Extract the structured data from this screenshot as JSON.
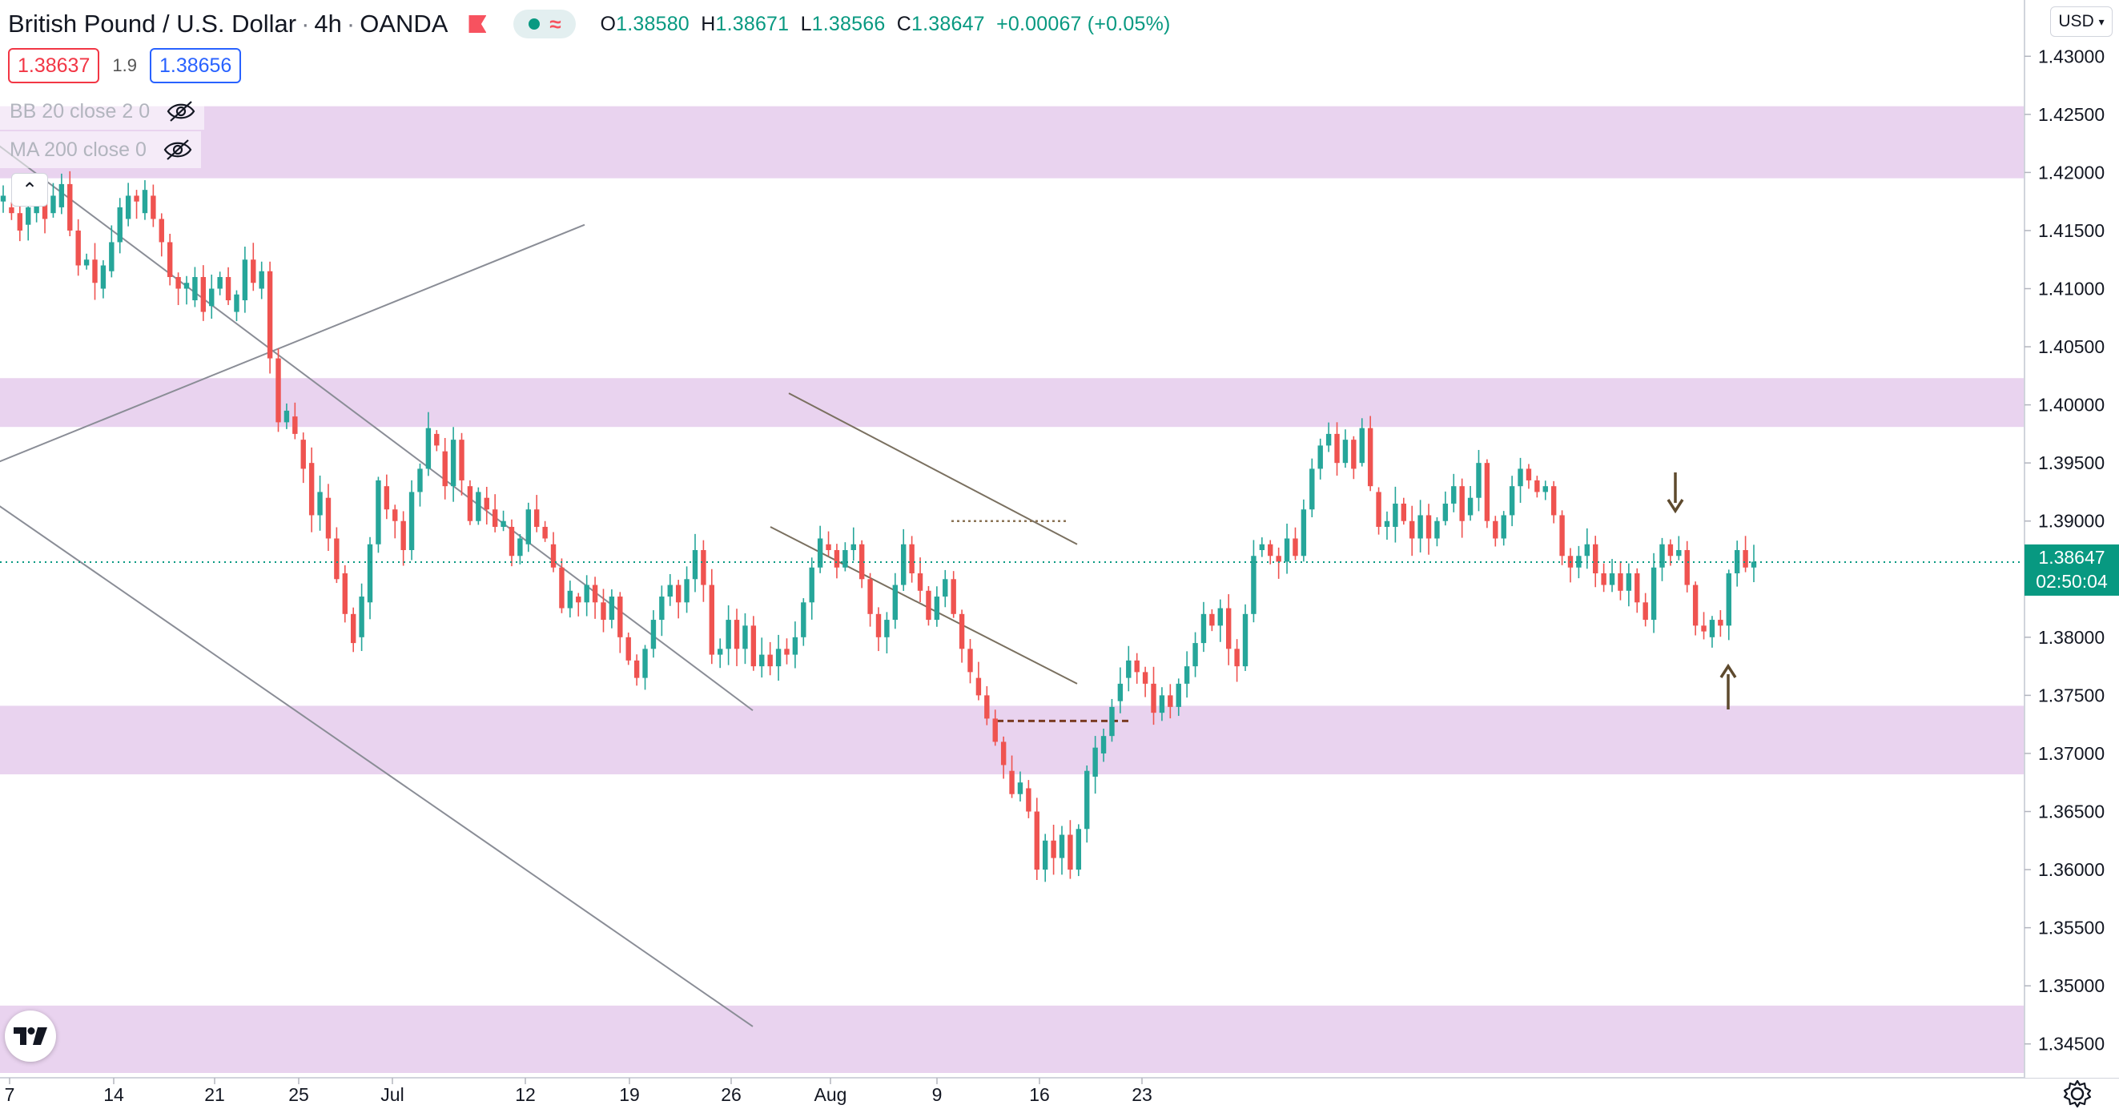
{
  "header": {
    "symbol": "British Pound / U.S. Dollar",
    "interval": "4h",
    "broker": "OANDA",
    "ohlc": {
      "o_label": "O",
      "o": "1.38580",
      "h_label": "H",
      "h": "1.38671",
      "l_label": "L",
      "l": "1.38566",
      "c_label": "C",
      "c": "1.38647",
      "change": "+0.00067 (+0.05%)"
    },
    "market_status_icon": "market-open-dot-icon",
    "flag_icon": "red-flag-icon"
  },
  "trade": {
    "sell": "1.38637",
    "spread": "1.9",
    "buy": "1.38656"
  },
  "indicators": [
    {
      "label": "BB 20 close 2 0",
      "icon": "eye-hidden-icon"
    },
    {
      "label": "MA 200 close 0",
      "icon": "eye-hidden-icon"
    }
  ],
  "currency_selector": "USD",
  "current_price": {
    "value": "1.38647",
    "countdown": "02:50:04"
  },
  "colors": {
    "up": "#26a69a",
    "down": "#ef5350",
    "zone": "#e1c4ea",
    "trendline": "#8a8d96",
    "arrow": "#5e4a2e"
  },
  "chart_data": {
    "type": "candlestick",
    "title": "",
    "xlabel": "",
    "ylabel": "",
    "ylim": [
      1.3425,
      1.4325
    ],
    "y_ticks": [
      "1.43000",
      "1.42500",
      "1.42000",
      "1.41500",
      "1.41000",
      "1.40500",
      "1.40000",
      "1.39500",
      "1.39000",
      "1.38500",
      "1.38000",
      "1.37500",
      "1.37000",
      "1.36500",
      "1.36000",
      "1.35500",
      "1.35000",
      "1.34500"
    ],
    "x_ticks": [
      "7",
      "14",
      "21",
      "25",
      "Jul",
      "12",
      "19",
      "26",
      "Aug",
      "9",
      "16",
      "23"
    ],
    "grid": false,
    "zones": [
      {
        "low": 1.4195,
        "high": 1.4257
      },
      {
        "low": 1.3981,
        "high": 1.4023
      },
      {
        "low": 1.3682,
        "high": 1.3741
      },
      {
        "low": 1.3425,
        "high": 1.3483
      }
    ],
    "trendlines": [
      {
        "from": [
          "Jun 5",
          1.4225
        ],
        "to": [
          "Jul 24",
          1.3737
        ]
      },
      {
        "from": [
          "Jun 5",
          1.395
        ],
        "to": [
          "Jul 9",
          1.4155
        ]
      },
      {
        "from": [
          "Jun 5",
          1.3915
        ],
        "to": [
          "Jul 24",
          1.3465
        ]
      },
      {
        "from": [
          "Jul 28",
          1.401
        ],
        "to": [
          "Aug 18",
          1.388
        ]
      },
      {
        "from": [
          "Jul 27",
          1.3895
        ],
        "to": [
          "Aug 18",
          1.376
        ]
      }
    ],
    "levels": [
      {
        "value": 1.39,
        "from": "Aug 10",
        "to": "Aug 16",
        "style": "dotted"
      },
      {
        "value": 1.3728,
        "from": "Aug 13",
        "to": "Aug 19",
        "style": "dashed"
      }
    ],
    "markers": [
      {
        "type": "arrow-down",
        "at": "Aug 13",
        "value": 1.3935
      },
      {
        "type": "arrow-up",
        "at": "Aug 13",
        "value": 1.3755
      }
    ],
    "series": [
      {
        "points": [
          [
            1.4175,
            1.418
          ],
          [
            1.417,
            1.4165
          ],
          [
            1.4165,
            1.415
          ],
          [
            1.4155,
            1.417
          ],
          [
            1.4165,
            1.418
          ],
          [
            1.418,
            1.416
          ],
          [
            1.4165,
            1.418
          ],
          [
            1.417,
            1.419
          ],
          [
            1.419,
            1.415
          ],
          [
            1.415,
            1.412
          ],
          [
            1.412,
            1.4125
          ],
          [
            1.4125,
            1.4105
          ],
          [
            1.41,
            1.412
          ],
          [
            1.4115,
            1.414
          ],
          [
            1.414,
            1.417
          ],
          [
            1.416,
            1.418
          ],
          [
            1.418,
            1.4175
          ],
          [
            1.4165,
            1.4185
          ],
          [
            1.418,
            1.416
          ],
          [
            1.416,
            1.414
          ],
          [
            1.414,
            1.411
          ],
          [
            1.411,
            1.41
          ],
          [
            1.41,
            1.4105
          ],
          [
            1.409,
            1.411
          ],
          [
            1.411,
            1.408
          ],
          [
            1.4085,
            1.41
          ],
          [
            1.41,
            1.411
          ],
          [
            1.411,
            1.409
          ],
          [
            1.408,
            1.4095
          ],
          [
            1.409,
            1.4125
          ],
          [
            1.4125,
            1.4105
          ],
          [
            1.41,
            1.4115
          ],
          [
            1.4115,
            1.404
          ],
          [
            1.404,
            1.3985
          ],
          [
            1.3985,
            1.3995
          ],
          [
            1.399,
            1.3975
          ],
          [
            1.397,
            1.3945
          ],
          [
            1.395,
            1.3905
          ],
          [
            1.3905,
            1.3925
          ],
          [
            1.392,
            1.3885
          ],
          [
            1.3885,
            1.385
          ],
          [
            1.3855,
            1.382
          ],
          [
            1.382,
            1.3795
          ],
          [
            1.38,
            1.3835
          ],
          [
            1.383,
            1.388
          ],
          [
            1.388,
            1.3935
          ],
          [
            1.393,
            1.391
          ],
          [
            1.391,
            1.39
          ],
          [
            1.39,
            1.3875
          ],
          [
            1.3875,
            1.3925
          ],
          [
            1.3925,
            1.3945
          ],
          [
            1.3945,
            1.398
          ],
          [
            1.3975,
            1.3965
          ],
          [
            1.396,
            1.393
          ],
          [
            1.393,
            1.397
          ],
          [
            1.397,
            1.3935
          ],
          [
            1.393,
            1.39
          ],
          [
            1.39,
            1.3925
          ],
          [
            1.392,
            1.391
          ],
          [
            1.391,
            1.3895
          ],
          [
            1.3895,
            1.39
          ],
          [
            1.3895,
            1.387
          ],
          [
            1.387,
            1.3885
          ],
          [
            1.388,
            1.391
          ],
          [
            1.391,
            1.3895
          ],
          [
            1.3895,
            1.3885
          ],
          [
            1.388,
            1.386
          ],
          [
            1.386,
            1.3825
          ],
          [
            1.3825,
            1.384
          ],
          [
            1.3835,
            1.383
          ],
          [
            1.383,
            1.3845
          ],
          [
            1.3845,
            1.383
          ],
          [
            1.383,
            1.3815
          ],
          [
            1.3815,
            1.3835
          ],
          [
            1.3835,
            1.38
          ],
          [
            1.38,
            1.378
          ],
          [
            1.378,
            1.3765
          ],
          [
            1.3765,
            1.379
          ],
          [
            1.379,
            1.3815
          ],
          [
            1.3815,
            1.3835
          ],
          [
            1.3835,
            1.3845
          ],
          [
            1.3845,
            1.383
          ],
          [
            1.383,
            1.385
          ],
          [
            1.385,
            1.3875
          ],
          [
            1.3875,
            1.3845
          ],
          [
            1.3845,
            1.3785
          ],
          [
            1.3785,
            1.379
          ],
          [
            1.379,
            1.3815
          ],
          [
            1.3815,
            1.379
          ],
          [
            1.379,
            1.381
          ],
          [
            1.381,
            1.3775
          ],
          [
            1.3775,
            1.3785
          ],
          [
            1.3785,
            1.3775
          ],
          [
            1.3775,
            1.379
          ],
          [
            1.379,
            1.3785
          ],
          [
            1.3785,
            1.38
          ],
          [
            1.38,
            1.383
          ],
          [
            1.383,
            1.386
          ],
          [
            1.386,
            1.3885
          ],
          [
            1.388,
            1.3875
          ],
          [
            1.3875,
            1.386
          ],
          [
            1.386,
            1.3875
          ],
          [
            1.3875,
            1.388
          ],
          [
            1.388,
            1.385
          ],
          [
            1.385,
            1.382
          ],
          [
            1.382,
            1.38
          ],
          [
            1.38,
            1.3815
          ],
          [
            1.3815,
            1.3845
          ],
          [
            1.3845,
            1.388
          ],
          [
            1.388,
            1.3855
          ],
          [
            1.3855,
            1.384
          ],
          [
            1.384,
            1.3815
          ],
          [
            1.3815,
            1.3835
          ],
          [
            1.3835,
            1.385
          ],
          [
            1.385,
            1.382
          ],
          [
            1.382,
            1.379
          ],
          [
            1.379,
            1.377
          ],
          [
            1.3765,
            1.375
          ],
          [
            1.375,
            1.373
          ],
          [
            1.373,
            1.371
          ],
          [
            1.371,
            1.369
          ],
          [
            1.3685,
            1.3665
          ],
          [
            1.3665,
            1.3675
          ],
          [
            1.367,
            1.365
          ],
          [
            1.365,
            1.36
          ],
          [
            1.36,
            1.3625
          ],
          [
            1.3625,
            1.361
          ],
          [
            1.361,
            1.363
          ],
          [
            1.363,
            1.36
          ],
          [
            1.36,
            1.3635
          ],
          [
            1.3635,
            1.3685
          ],
          [
            1.368,
            1.3705
          ],
          [
            1.37,
            1.3715
          ],
          [
            1.3715,
            1.374
          ],
          [
            1.3745,
            1.376
          ],
          [
            1.3765,
            1.378
          ],
          [
            1.378,
            1.377
          ],
          [
            1.377,
            1.376
          ],
          [
            1.376,
            1.3735
          ],
          [
            1.3735,
            1.375
          ],
          [
            1.375,
            1.374
          ],
          [
            1.374,
            1.376
          ],
          [
            1.376,
            1.3775
          ],
          [
            1.3775,
            1.3795
          ],
          [
            1.3795,
            1.382
          ],
          [
            1.382,
            1.381
          ],
          [
            1.381,
            1.3825
          ],
          [
            1.3825,
            1.379
          ],
          [
            1.379,
            1.3775
          ],
          [
            1.3775,
            1.382
          ],
          [
            1.382,
            1.387
          ],
          [
            1.3875,
            1.388
          ],
          [
            1.388,
            1.387
          ],
          [
            1.387,
            1.3865
          ],
          [
            1.3865,
            1.3885
          ],
          [
            1.3885,
            1.387
          ],
          [
            1.387,
            1.391
          ],
          [
            1.391,
            1.3945
          ],
          [
            1.3945,
            1.3965
          ],
          [
            1.3965,
            1.3975
          ],
          [
            1.3975,
            1.395
          ],
          [
            1.395,
            1.397
          ],
          [
            1.397,
            1.3945
          ],
          [
            1.395,
            1.398
          ],
          [
            1.398,
            1.393
          ],
          [
            1.3925,
            1.3895
          ],
          [
            1.3895,
            1.39
          ],
          [
            1.3895,
            1.3915
          ],
          [
            1.3915,
            1.39
          ],
          [
            1.39,
            1.3885
          ],
          [
            1.3885,
            1.3905
          ],
          [
            1.3905,
            1.3885
          ],
          [
            1.3885,
            1.39
          ],
          [
            1.39,
            1.3915
          ],
          [
            1.3915,
            1.393
          ],
          [
            1.393,
            1.39
          ],
          [
            1.3905,
            1.392
          ],
          [
            1.392,
            1.395
          ],
          [
            1.395,
            1.39
          ],
          [
            1.39,
            1.3885
          ],
          [
            1.3885,
            1.3905
          ],
          [
            1.3905,
            1.393
          ],
          [
            1.393,
            1.3945
          ],
          [
            1.3945,
            1.3935
          ],
          [
            1.3935,
            1.3925
          ],
          [
            1.3925,
            1.393
          ],
          [
            1.393,
            1.3905
          ],
          [
            1.3905,
            1.387
          ],
          [
            1.387,
            1.386
          ],
          [
            1.386,
            1.387
          ],
          [
            1.387,
            1.388
          ],
          [
            1.388,
            1.3855
          ],
          [
            1.3855,
            1.3845
          ],
          [
            1.3845,
            1.3855
          ],
          [
            1.3855,
            1.384
          ],
          [
            1.384,
            1.3855
          ],
          [
            1.3855,
            1.383
          ],
          [
            1.383,
            1.3815
          ],
          [
            1.3815,
            1.386
          ],
          [
            1.386,
            1.388
          ],
          [
            1.388,
            1.387
          ],
          [
            1.387,
            1.3875
          ],
          [
            1.3875,
            1.3845
          ],
          [
            1.3845,
            1.381
          ],
          [
            1.381,
            1.3805
          ],
          [
            1.38,
            1.3815
          ],
          [
            1.3815,
            1.381
          ],
          [
            1.381,
            1.3855
          ],
          [
            1.3855,
            1.3875
          ],
          [
            1.3875,
            1.386
          ],
          [
            1.386,
            1.3865
          ]
        ]
      }
    ]
  }
}
